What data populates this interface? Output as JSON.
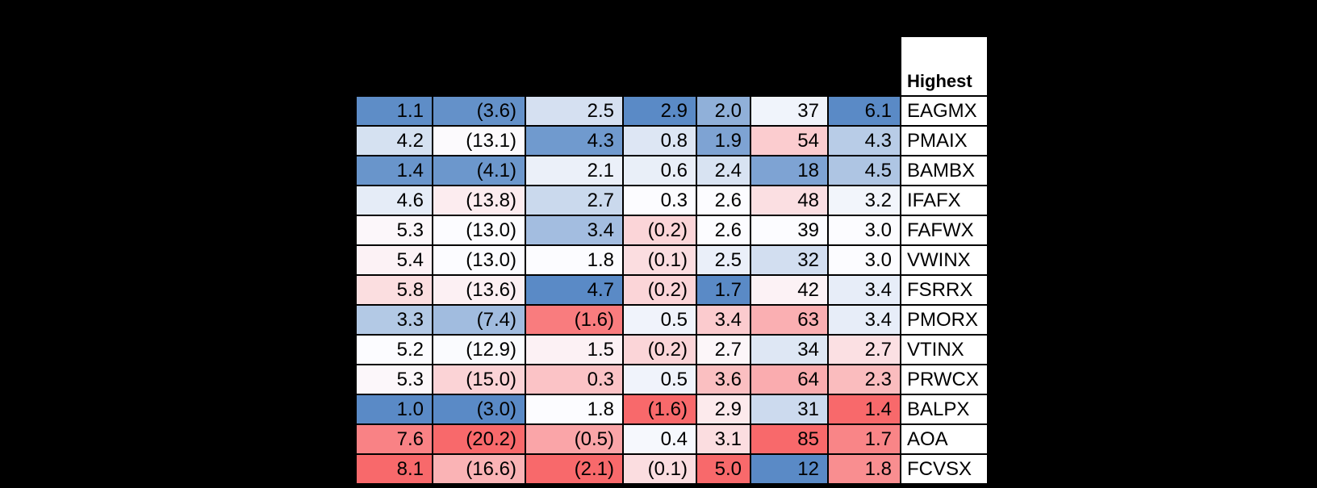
{
  "colors": {
    "page_background": "#000000",
    "grid_lines": "#000000",
    "cell_text": "#000000",
    "ticker_background": "#FFFFFF",
    "scale_blue": "#5A8AC6",
    "scale_white": "#FCFCFF",
    "scale_red": "#F8696B"
  },
  "chart_data": {
    "type": "heatmap",
    "ticker_header": "Highest",
    "color_scale": {
      "low": "#5A8AC6",
      "mid": "#FCFCFF",
      "high": "#F8696B"
    },
    "rows": [
      {
        "ticker": "EAGMX",
        "values": [
          1.1,
          -3.6,
          2.5,
          2.9,
          2.0,
          37,
          6.1
        ],
        "display": [
          "1.1",
          "(3.6)",
          "2.5",
          "2.9",
          "2.0",
          "37",
          "6.1"
        ],
        "colors": [
          "#5E8DC7",
          "#6491C9",
          "#D5E0F1",
          "#5A8AC6",
          "#90B0D9",
          "#F0F4FB",
          "#5A8AC6"
        ]
      },
      {
        "ticker": "PMAIX",
        "values": [
          4.2,
          -13.1,
          4.3,
          0.8,
          1.9,
          54,
          4.3
        ],
        "display": [
          "4.2",
          "(13.1)",
          "4.3",
          "0.8",
          "1.9",
          "54",
          "4.3"
        ],
        "colors": [
          "#D5E1F1",
          "#FCFAFD",
          "#709ACE",
          "#DDE6F4",
          "#7EA3D3",
          "#FBCCCF",
          "#B8CCE7"
        ]
      },
      {
        "ticker": "BAMBX",
        "values": [
          1.4,
          -4.1,
          2.1,
          0.6,
          2.4,
          18,
          4.5
        ],
        "display": [
          "1.4",
          "(4.1)",
          "2.1",
          "0.6",
          "2.4",
          "18",
          "4.5"
        ],
        "colors": [
          "#6995CB",
          "#6C97CC",
          "#EBF0F9",
          "#E9EFF8",
          "#D8E3F2",
          "#7EA3D3",
          "#AEC5E3"
        ]
      },
      {
        "ticker": "IFAFX",
        "values": [
          4.6,
          -13.8,
          2.7,
          0.3,
          2.6,
          48,
          3.2
        ],
        "display": [
          "4.6",
          "(13.8)",
          "2.7",
          "0.3",
          "2.6",
          "48",
          "3.2"
        ],
        "colors": [
          "#E5ECF7",
          "#FCECEF",
          "#CAD9ED",
          "#FCFCFF",
          "#FCFCFF",
          "#FBDFE2",
          "#F2F5FB"
        ]
      },
      {
        "ticker": "FAFWX",
        "values": [
          5.3,
          -13.0,
          3.4,
          -0.2,
          2.6,
          39,
          3.0
        ],
        "display": [
          "5.3",
          "(13.0)",
          "3.4",
          "(0.2)",
          "2.6",
          "39",
          "3.0"
        ],
        "colors": [
          "#FCF7FA",
          "#FCFCFF",
          "#A3BDE0",
          "#FBD5D8",
          "#FCFCFF",
          "#FCFCFF",
          "#FCFCFF"
        ]
      },
      {
        "ticker": "VWINX",
        "values": [
          5.4,
          -13.0,
          1.8,
          -0.1,
          2.5,
          32,
          3.0
        ],
        "display": [
          "5.4",
          "(13.0)",
          "1.8",
          "(0.1)",
          "2.5",
          "32",
          "3.0"
        ],
        "colors": [
          "#FCF2F5",
          "#FCFCFF",
          "#FCFCFF",
          "#FBDDE0",
          "#EAEFF9",
          "#D2DEF0",
          "#FCFCFF"
        ]
      },
      {
        "ticker": "FSRRX",
        "values": [
          5.8,
          -13.6,
          4.7,
          -0.2,
          1.7,
          42,
          3.4
        ],
        "display": [
          "5.8",
          "(13.6)",
          "4.7",
          "(0.2)",
          "1.7",
          "42",
          "3.4"
        ],
        "colors": [
          "#FBDEE0",
          "#FCF0F3",
          "#5A8AC6",
          "#FBD5D8",
          "#5A8AC6",
          "#FCF2F5",
          "#E7EDF8"
        ]
      },
      {
        "ticker": "PMORX",
        "values": [
          3.3,
          -7.4,
          -1.6,
          0.5,
          3.4,
          63,
          3.4
        ],
        "display": [
          "3.3",
          "(7.4)",
          "(1.6)",
          "0.5",
          "3.4",
          "63",
          "3.4"
        ],
        "colors": [
          "#B3C9E5",
          "#A1BCDF",
          "#F97C7E",
          "#F0F3FB",
          "#FBCBCE",
          "#FAAFB2",
          "#E7EDF8"
        ]
      },
      {
        "ticker": "VTINX",
        "values": [
          5.2,
          -12.9,
          1.5,
          -0.2,
          2.7,
          34,
          2.7
        ],
        "display": [
          "5.2",
          "(12.9)",
          "1.5",
          "(0.2)",
          "2.7",
          "34",
          "2.7"
        ],
        "colors": [
          "#FCFCFF",
          "#FAFBFE",
          "#FCF1F4",
          "#FBD5D8",
          "#FCF6F9",
          "#DEE7F4",
          "#FBE0E3"
        ]
      },
      {
        "ticker": "PRWCX",
        "values": [
          5.3,
          -15.0,
          0.3,
          0.5,
          3.6,
          64,
          2.3
        ],
        "display": [
          "5.3",
          "(15.0)",
          "0.3",
          "0.5",
          "3.6",
          "64",
          "2.3"
        ],
        "colors": [
          "#FCF7FA",
          "#FBD3D6",
          "#FBC3C6",
          "#F0F3FB",
          "#FABFC1",
          "#FAACAF",
          "#FABCBE"
        ]
      },
      {
        "ticker": "BALPX",
        "values": [
          1.0,
          -3.0,
          1.8,
          -1.6,
          2.9,
          31,
          1.4
        ],
        "display": [
          "1.0",
          "(3.0)",
          "1.8",
          "(1.6)",
          "2.9",
          "31",
          "1.4"
        ],
        "colors": [
          "#5A8AC6",
          "#5A8AC6",
          "#FCFCFF",
          "#F8696B",
          "#FCEAEC",
          "#CCDAEE",
          "#F8696B"
        ]
      },
      {
        "ticker": "AOA",
        "values": [
          7.6,
          -20.2,
          -0.5,
          0.4,
          3.1,
          85,
          1.7
        ],
        "display": [
          "7.6",
          "(20.2)",
          "(0.5)",
          "0.4",
          "3.1",
          "85",
          "1.7"
        ],
        "colors": [
          "#F98285",
          "#F8696B",
          "#FAA5A8",
          "#F6F8FD",
          "#FBDDE0",
          "#F8696B",
          "#F98587"
        ]
      },
      {
        "ticker": "FCVSX",
        "values": [
          8.1,
          -16.6,
          -2.1,
          -0.1,
          5.0,
          12,
          1.8
        ],
        "display": [
          "8.1",
          "(16.6)",
          "(2.1)",
          "(0.1)",
          "5.0",
          "12",
          "1.8"
        ],
        "colors": [
          "#F8696B",
          "#FAB3B5",
          "#F8696B",
          "#FBDDE0",
          "#F8696B",
          "#5A8AC6",
          "#F98E90"
        ]
      }
    ]
  }
}
